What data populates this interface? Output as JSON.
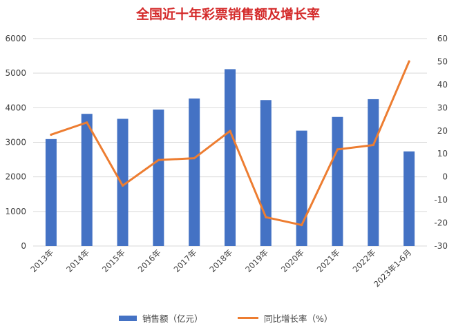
{
  "chart_data": {
    "type": "bar+line",
    "title": "全国近十年彩票销售额及增长率",
    "categories": [
      "2013年",
      "2014年",
      "2015年",
      "2016年",
      "2017年",
      "2018年",
      "2019年",
      "2020年",
      "2021年",
      "2022年",
      "2023年1-6月"
    ],
    "series": [
      {
        "name": "销售额（亿元）",
        "type": "bar",
        "axis": "left",
        "color": "#4472c4",
        "values": [
          3093,
          3823,
          3679,
          3947,
          4267,
          5115,
          4221,
          3337,
          3733,
          4247,
          2737
        ]
      },
      {
        "name": "同比增长率（%）",
        "type": "line",
        "axis": "right",
        "color": "#ed7d31",
        "values": [
          18.3,
          23.6,
          -3.8,
          7.3,
          8.1,
          19.9,
          -17.5,
          -20.9,
          11.9,
          13.8,
          50.1
        ]
      }
    ],
    "left_axis": {
      "min": 0,
      "max": 6000,
      "ticks": [
        "0",
        "1000",
        "2000",
        "3000",
        "4000",
        "5000",
        "6000"
      ]
    },
    "right_axis": {
      "min": -30,
      "max": 60,
      "ticks": [
        "-30",
        "-20",
        "-10",
        "0",
        "10",
        "20",
        "30",
        "40",
        "50",
        "60"
      ]
    },
    "legend_position": "bottom",
    "gridlines": true
  }
}
